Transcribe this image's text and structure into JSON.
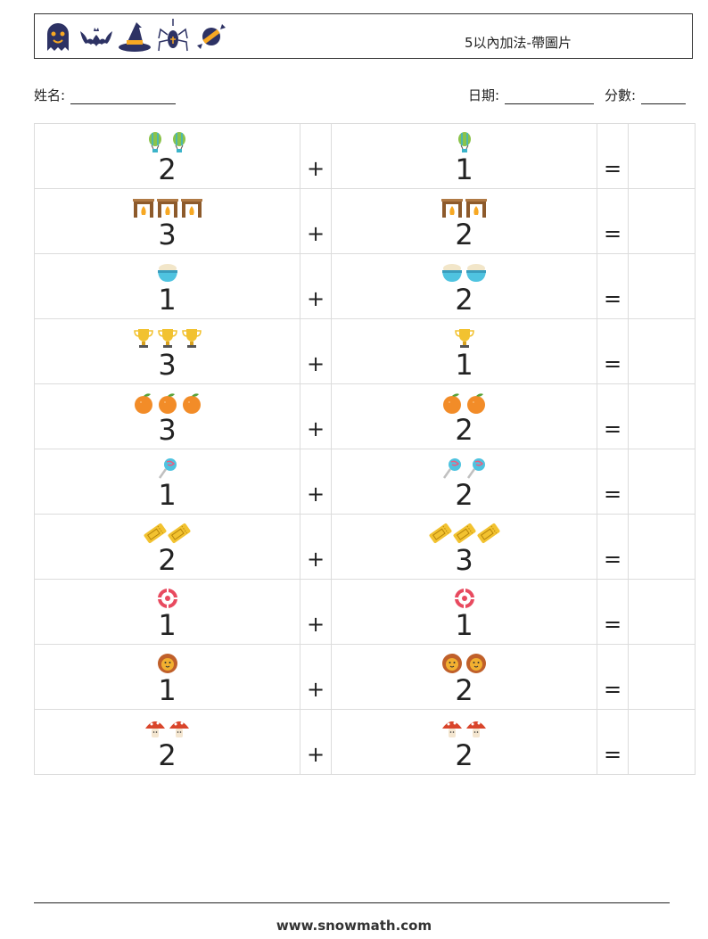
{
  "header": {
    "title": "5以內加法-帶圖片",
    "icons": [
      "ghost-icon",
      "bat-icon",
      "witch-hat-icon",
      "spider-icon",
      "candy-icon"
    ]
  },
  "fields": {
    "name_label": "姓名:",
    "date_label": "日期:",
    "score_label": "分數:"
  },
  "operators": {
    "plus": "+",
    "equals": "="
  },
  "problems": [
    {
      "left": 2,
      "right": 1,
      "picture": "hot-air-balloon-icon"
    },
    {
      "left": 3,
      "right": 2,
      "picture": "fireplace-icon"
    },
    {
      "left": 1,
      "right": 2,
      "picture": "bowl-icon"
    },
    {
      "left": 3,
      "right": 1,
      "picture": "trophy-icon"
    },
    {
      "left": 3,
      "right": 2,
      "picture": "orange-icon"
    },
    {
      "left": 1,
      "right": 2,
      "picture": "lollipop-icon"
    },
    {
      "left": 2,
      "right": 3,
      "picture": "ticket-icon"
    },
    {
      "left": 1,
      "right": 1,
      "picture": "poker-chip-icon"
    },
    {
      "left": 1,
      "right": 2,
      "picture": "lion-icon"
    },
    {
      "left": 2,
      "right": 2,
      "picture": "mushroom-icon"
    }
  ],
  "footer": {
    "website": "www.snowmath.com"
  }
}
